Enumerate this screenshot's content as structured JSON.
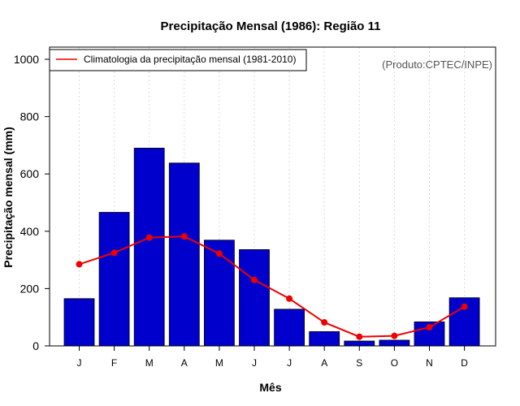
{
  "chart_data": {
    "type": "bar",
    "title": "Precipitação Mensal (1986): Região 11",
    "xlabel": "Mês",
    "ylabel": "Precipitação mensal (mm)",
    "categories": [
      "J",
      "F",
      "M",
      "A",
      "M",
      "J",
      "J",
      "A",
      "S",
      "O",
      "N",
      "D"
    ],
    "series": [
      {
        "name": "Precipitação mensal (1986)",
        "kind": "bar",
        "color": "#0000CC",
        "values": [
          165,
          466,
          690,
          638,
          369,
          336,
          128,
          50,
          17,
          20,
          84,
          168
        ]
      },
      {
        "name": "Climatologia da precipitação mensal (1981-2010)",
        "kind": "line",
        "color": "#EE0000",
        "values": [
          285,
          325,
          378,
          382,
          322,
          230,
          165,
          82,
          32,
          35,
          65,
          137
        ]
      }
    ],
    "ylim": [
      0,
      1000
    ],
    "yticks": [
      0,
      200,
      400,
      600,
      800,
      1000
    ],
    "grid": "vertical-dotted",
    "legend": "top-left",
    "legend_entries": [
      "Climatologia da precipitação mensal (1981-2010)"
    ],
    "annotation": "(Produto:CPTEC/INPE)"
  }
}
